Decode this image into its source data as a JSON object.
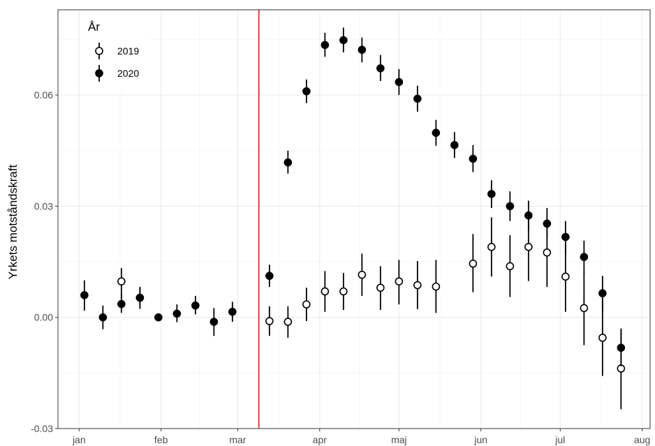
{
  "chart_data": {
    "type": "scatter",
    "title": "",
    "xlabel": "",
    "ylabel": "Yrkets motståndskraft",
    "x_ticks": [
      {
        "label": "jan",
        "x": 1
      },
      {
        "label": "feb",
        "x": 32
      },
      {
        "label": "mar",
        "x": 61
      },
      {
        "label": "apr",
        "x": 92
      },
      {
        "label": "maj",
        "x": 122
      },
      {
        "label": "jun",
        "x": 153
      },
      {
        "label": "jul",
        "x": 183
      },
      {
        "label": "aug",
        "x": 214
      }
    ],
    "xlim": [
      -7,
      217
    ],
    "ylim": [
      -0.03,
      0.083
    ],
    "y_ticks": [
      {
        "label": "-0.03",
        "value": -0.03
      },
      {
        "label": "0.00",
        "value": 0.0
      },
      {
        "label": "0.03",
        "value": 0.03
      },
      {
        "label": "0.06",
        "value": 0.06
      }
    ],
    "y_minor": [
      -0.015,
      0.015,
      0.045,
      0.075
    ],
    "grid": true,
    "vline": {
      "x": 69,
      "color": "#e31a1c"
    },
    "legend": {
      "title": "År",
      "position": "top-left",
      "entries": [
        "2019",
        "2020"
      ]
    },
    "series": [
      {
        "name": "2019",
        "marker": "open-circle",
        "points": [
          {
            "x": 73,
            "y": -0.001,
            "lo": -0.005,
            "hi": 0.003
          },
          {
            "x": 80,
            "y": -0.0012,
            "lo": -0.0055,
            "hi": 0.003
          },
          {
            "x": 87,
            "y": 0.0035,
            "lo": -0.001,
            "hi": 0.008
          },
          {
            "x": 94,
            "y": 0.007,
            "lo": 0.0015,
            "hi": 0.0125
          },
          {
            "x": 101,
            "y": 0.007,
            "lo": 0.002,
            "hi": 0.012
          },
          {
            "x": 108,
            "y": 0.0115,
            "lo": 0.0058,
            "hi": 0.0172
          },
          {
            "x": 115,
            "y": 0.008,
            "lo": 0.002,
            "hi": 0.0138
          },
          {
            "x": 122,
            "y": 0.0097,
            "lo": 0.0035,
            "hi": 0.0155
          },
          {
            "x": 129,
            "y": 0.0087,
            "lo": 0.0022,
            "hi": 0.0152
          },
          {
            "x": 136,
            "y": 0.0083,
            "lo": 0.0012,
            "hi": 0.0155
          },
          {
            "x": 150,
            "y": 0.0145,
            "lo": 0.0068,
            "hi": 0.0225
          },
          {
            "x": 157,
            "y": 0.019,
            "lo": 0.011,
            "hi": 0.027
          },
          {
            "x": 164,
            "y": 0.0138,
            "lo": 0.0055,
            "hi": 0.0222
          },
          {
            "x": 171,
            "y": 0.019,
            "lo": 0.0098,
            "hi": 0.0282
          },
          {
            "x": 178,
            "y": 0.0175,
            "lo": 0.0082,
            "hi": 0.0268
          },
          {
            "x": 185,
            "y": 0.011,
            "lo": 0.0015,
            "hi": 0.0205
          },
          {
            "x": 192,
            "y": 0.0025,
            "lo": -0.0075,
            "hi": 0.0125
          },
          {
            "x": 199,
            "y": -0.0055,
            "lo": -0.0158,
            "hi": 0.005
          },
          {
            "x": 206,
            "y": -0.0138,
            "lo": -0.0248,
            "hi": -0.003
          },
          {
            "x": 17,
            "y": 0.0097,
            "lo": 0.0053,
            "hi": 0.0133
          }
        ]
      },
      {
        "name": "2020",
        "marker": "filled-circle",
        "points": [
          {
            "x": 3,
            "y": 0.006,
            "lo": 0.0018,
            "hi": 0.01
          },
          {
            "x": 10,
            "y": 0.0,
            "lo": -0.0032,
            "hi": 0.0032
          },
          {
            "x": 17,
            "y": 0.0036,
            "lo": 0.0012,
            "hi": 0.0062
          },
          {
            "x": 24,
            "y": 0.0053,
            "lo": 0.0023,
            "hi": 0.0082
          },
          {
            "x": 31,
            "y": 0.0,
            "lo": -0.0005,
            "hi": 0.0005
          },
          {
            "x": 38,
            "y": 0.001,
            "lo": -0.0013,
            "hi": 0.0035
          },
          {
            "x": 45,
            "y": 0.0032,
            "lo": 0.0008,
            "hi": 0.0058
          },
          {
            "x": 52,
            "y": -0.0012,
            "lo": -0.005,
            "hi": 0.0025
          },
          {
            "x": 59,
            "y": 0.0015,
            "lo": -0.0012,
            "hi": 0.0042
          },
          {
            "x": 73,
            "y": 0.0112,
            "lo": 0.0082,
            "hi": 0.0142
          },
          {
            "x": 80,
            "y": 0.0418,
            "lo": 0.0388,
            "hi": 0.045
          },
          {
            "x": 87,
            "y": 0.061,
            "lo": 0.0578,
            "hi": 0.0642
          },
          {
            "x": 94,
            "y": 0.0735,
            "lo": 0.0703,
            "hi": 0.0768
          },
          {
            "x": 101,
            "y": 0.0748,
            "lo": 0.0715,
            "hi": 0.0782
          },
          {
            "x": 108,
            "y": 0.0722,
            "lo": 0.0688,
            "hi": 0.0755
          },
          {
            "x": 115,
            "y": 0.0672,
            "lo": 0.0638,
            "hi": 0.0708
          },
          {
            "x": 122,
            "y": 0.0635,
            "lo": 0.06,
            "hi": 0.067
          },
          {
            "x": 129,
            "y": 0.059,
            "lo": 0.0555,
            "hi": 0.0625
          },
          {
            "x": 136,
            "y": 0.0498,
            "lo": 0.0463,
            "hi": 0.0533
          },
          {
            "x": 143,
            "y": 0.0465,
            "lo": 0.043,
            "hi": 0.05
          },
          {
            "x": 150,
            "y": 0.0428,
            "lo": 0.0392,
            "hi": 0.0465
          },
          {
            "x": 157,
            "y": 0.0333,
            "lo": 0.0295,
            "hi": 0.037
          },
          {
            "x": 164,
            "y": 0.03,
            "lo": 0.026,
            "hi": 0.034
          },
          {
            "x": 171,
            "y": 0.0275,
            "lo": 0.0235,
            "hi": 0.0315
          },
          {
            "x": 178,
            "y": 0.0253,
            "lo": 0.0212,
            "hi": 0.0295
          },
          {
            "x": 185,
            "y": 0.0217,
            "lo": 0.0173,
            "hi": 0.026
          },
          {
            "x": 192,
            "y": 0.0163,
            "lo": 0.0118,
            "hi": 0.0207
          },
          {
            "x": 199,
            "y": 0.0065,
            "lo": 0.0018,
            "hi": 0.0112
          },
          {
            "x": 206,
            "y": -0.0082,
            "lo": -0.0132,
            "hi": -0.0032
          },
          {
            "x": 24,
            "y": 0.0053,
            "lo": 0.0023,
            "hi": 0.0082
          }
        ]
      }
    ]
  }
}
